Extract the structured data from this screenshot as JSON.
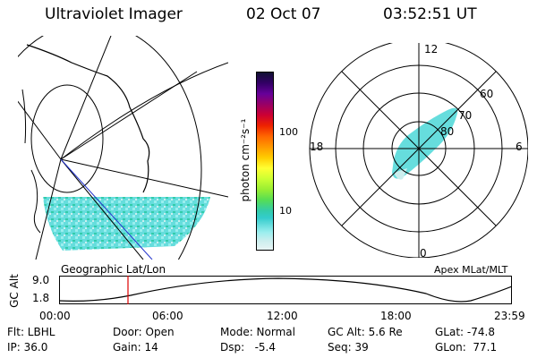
{
  "header": {
    "instrument": "Ultraviolet Imager",
    "date": "02 Oct 07",
    "time": "03:52:51 UT"
  },
  "geo_panel": {
    "caption": "Geographic Lat/Lon"
  },
  "colorbar": {
    "unit_label": "photon cm⁻²s⁻¹",
    "ticks": [
      "100",
      "10"
    ],
    "scale": "log",
    "colors": [
      "#111133",
      "#330066",
      "#660099",
      "#990066",
      "#cc0033",
      "#ee2200",
      "#ff6600",
      "#ff9900",
      "#ffcc00",
      "#ffff33",
      "#ccff33",
      "#99ee33",
      "#55dd55",
      "#33ccaa",
      "#33cccc",
      "#66dddd",
      "#99eeee",
      "#cceeee",
      "#e8f4f4"
    ]
  },
  "polar_panel": {
    "caption": "Apex MLat/MLT",
    "mlt_labels": [
      "12",
      "18",
      "6",
      "0"
    ],
    "mlat_labels": [
      "60",
      "70",
      "80"
    ]
  },
  "orbit_panel": {
    "ylabel": "GC Alt",
    "yticks": [
      "9.0",
      "1.8"
    ],
    "xticks": [
      "00:00",
      "06:00",
      "12:00",
      "18:00",
      "23:59"
    ]
  },
  "params": {
    "filter": "Flt: LBHL",
    "ip": "IP: 36.0",
    "door": "Door: Open",
    "gain": "Gain: 14",
    "mode": "Mode: Normal",
    "dsp": "Dsp:   -5.4",
    "gc_alt": "GC Alt: 5.6 Re",
    "seq": "Seq: 39",
    "glat": "GLat: -74.8",
    "glon": "GLon:  77.1"
  },
  "colors": {
    "aurora": "#66dddd",
    "aurora_dark": "#33ccaa",
    "aurora_light": "#cceeee",
    "time_marker": "#dd0000",
    "blue_line": "#2233cc"
  }
}
